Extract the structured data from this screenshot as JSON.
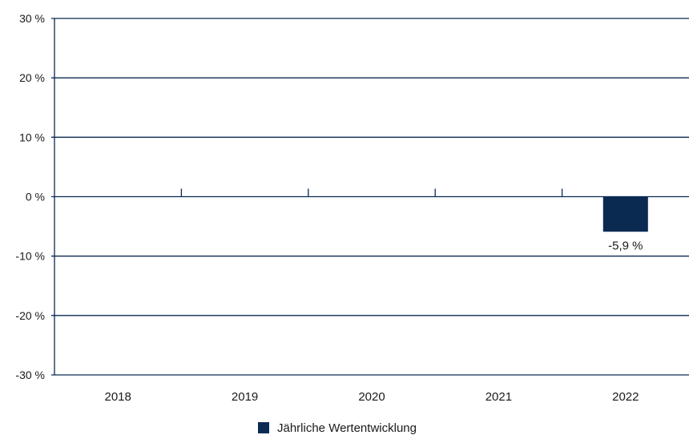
{
  "chart_data": {
    "type": "bar",
    "categories": [
      "2018",
      "2019",
      "2020",
      "2021",
      "2022"
    ],
    "series": [
      {
        "name": "Jährliche Wertentwicklung",
        "values": [
          null,
          null,
          null,
          null,
          -5.9
        ]
      }
    ],
    "data_labels": [
      "",
      "",
      "",
      "",
      "-5,9 %"
    ],
    "y_ticks": [
      30,
      20,
      10,
      0,
      -10,
      -20,
      -30
    ],
    "y_tick_labels": [
      "30 %",
      "20 %",
      "10 %",
      "0 %",
      "-10 %",
      "-20 %",
      "-30 %"
    ],
    "ylim": [
      -30,
      30
    ],
    "grid": true,
    "legend_position": "bottom",
    "title": "",
    "xlabel": "",
    "ylabel": ""
  },
  "colors": {
    "bar": "#0b2a52",
    "grid": "#0b2a52",
    "text": "#1a1a1a"
  },
  "legend": {
    "label": "Jährliche Wertentwicklung"
  }
}
